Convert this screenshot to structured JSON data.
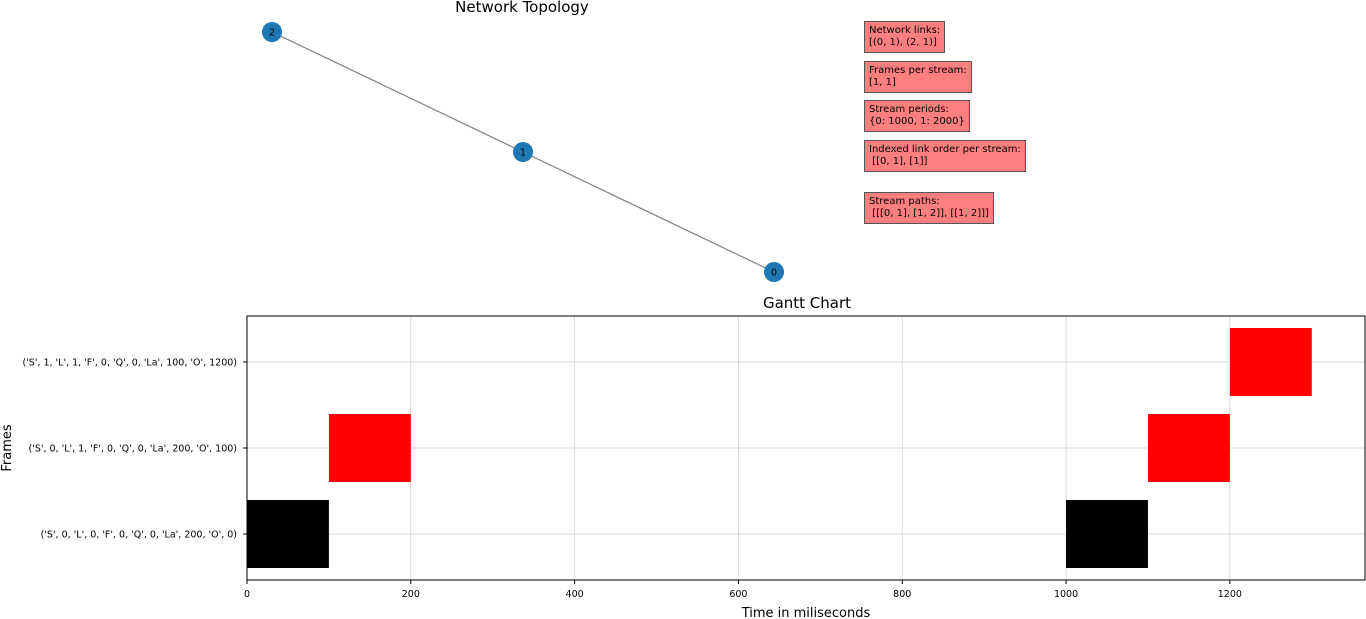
{
  "colors": {
    "node": "#1f77b4",
    "edge": "#808080",
    "info_box": "#ff7f7f",
    "bar_stream_0": "#000000",
    "bar_stream_1": "#ff0000",
    "grid": "#d3d3d3"
  },
  "topology": {
    "title": "Network  Topology",
    "nodes": [
      "2",
      "1",
      "0"
    ],
    "edges": [
      [
        "2",
        "1"
      ],
      [
        "1",
        "0"
      ]
    ]
  },
  "info_boxes": [
    {
      "label": "Network links:",
      "value": "[(0, 1), (2, 1)]"
    },
    {
      "label": "Frames per stream:",
      "value": "[1, 1]"
    },
    {
      "label": "Stream periods:",
      "value": "{0: 1000, 1: 2000}"
    },
    {
      "label": "Indexed link order per stream:",
      "value": " [[0, 1], [1]]"
    },
    {
      "label": "Stream paths:",
      "value": " [[[0, 1], [1, 2]], [[1, 2]]]"
    }
  ],
  "chart_data": {
    "type": "gantt",
    "title": "Gantt Chart",
    "xlabel": "Time in miliseconds",
    "ylabel": "Frames",
    "xlim": [
      0,
      1365
    ],
    "xticks": [
      0,
      200,
      400,
      600,
      800,
      1000,
      1200
    ],
    "grid": true,
    "rows": [
      "('S', 0, 'L', 0, 'F', 0, 'Q', 0, 'La', 200, 'O', 0)",
      "('S', 0, 'L', 1, 'F', 0, 'Q', 0, 'La', 200, 'O', 100)",
      "('S', 1, 'L', 1, 'F', 0, 'Q', 0, 'La', 100, 'O', 1200)"
    ],
    "bars": [
      {
        "row": 0,
        "start": 0,
        "end": 100,
        "color": "#000000"
      },
      {
        "row": 0,
        "start": 1000,
        "end": 1100,
        "color": "#000000"
      },
      {
        "row": 1,
        "start": 100,
        "end": 200,
        "color": "#ff0000"
      },
      {
        "row": 1,
        "start": 1100,
        "end": 1200,
        "color": "#ff0000"
      },
      {
        "row": 2,
        "start": 1200,
        "end": 1300,
        "color": "#ff0000"
      }
    ]
  }
}
